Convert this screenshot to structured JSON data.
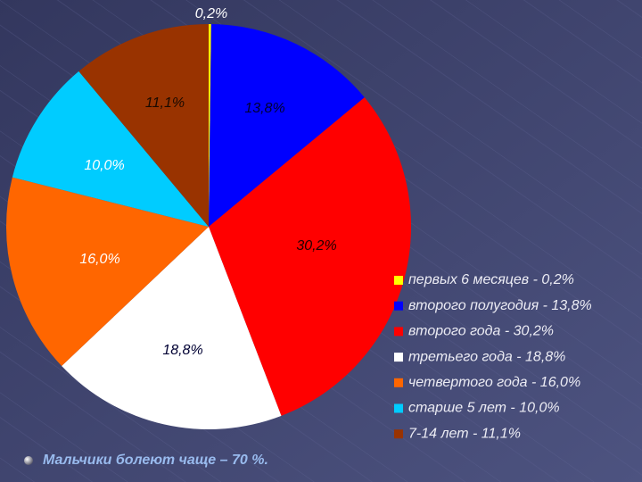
{
  "chart_data": {
    "type": "pie",
    "categories": [
      "первых 6 месяцев - 0,2%",
      "второго полугодия - 13,8%",
      "второго года - 30,2%",
      "третьего года - 18,8%",
      "четвертого года - 16,0%",
      "старше 5 лет - 10,0%",
      "7-14 лет - 11,1%"
    ],
    "values": [
      0.2,
      13.8,
      30.2,
      18.8,
      16.0,
      10.0,
      11.1
    ],
    "value_labels": [
      "0,2%",
      "13,8%",
      "30,2%",
      "18,8%",
      "16,0%",
      "10,0%",
      "11,1%"
    ],
    "colors": [
      "#ffff00",
      "#0000ff",
      "#ff0000",
      "#ffffff",
      "#ff6600",
      "#00ccff",
      "#993300"
    ],
    "annotation": "Мальчики болеют чаще – 70 %."
  }
}
